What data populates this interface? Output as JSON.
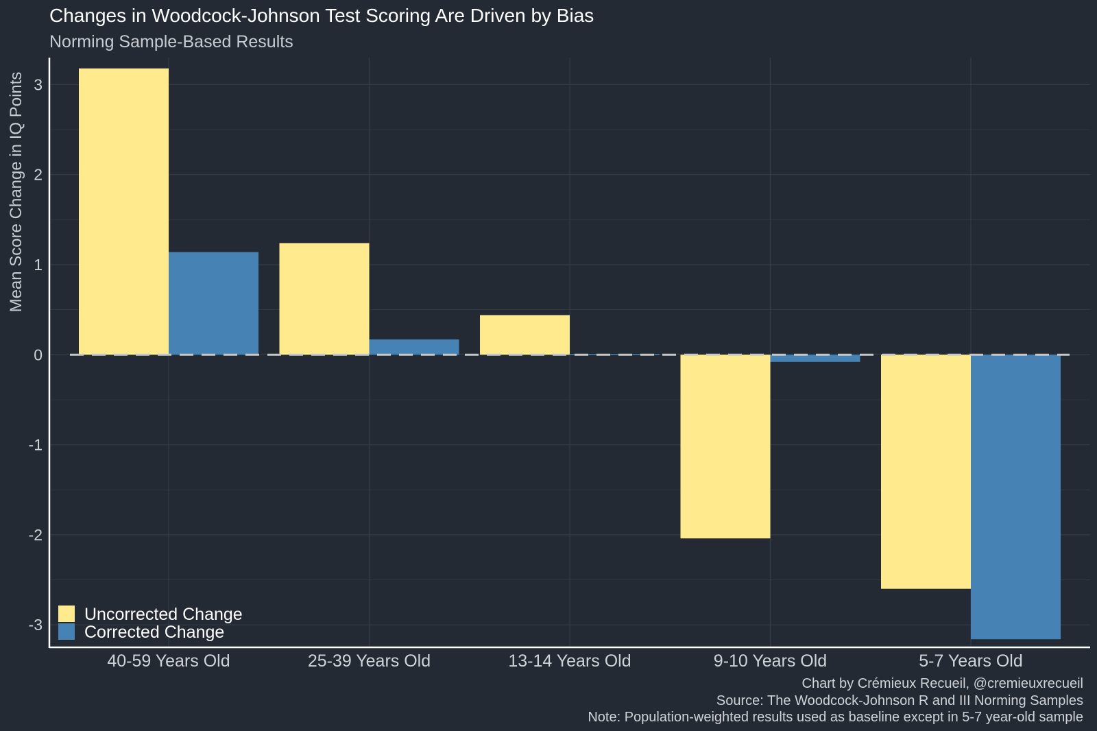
{
  "chart_data": {
    "type": "bar",
    "title": "Changes in Woodcock-Johnson Test Scoring Are Driven by Bias",
    "subtitle": "Norming Sample-Based Results",
    "xlabel": "",
    "ylabel": "Mean Score Change in IQ Points",
    "ylim": [
      -3.25,
      3.3
    ],
    "yticks": [
      -3,
      -2,
      -1,
      0,
      1,
      2,
      3
    ],
    "grid": true,
    "reference_line": {
      "y": 0,
      "style": "dashed"
    },
    "legend_position": "bottom-left",
    "categories": [
      "40-59 Years Old",
      "25-39 Years Old",
      "13-14 Years Old",
      "9-10 Years Old",
      "5-7 Years Old"
    ],
    "series": [
      {
        "name": "Uncorrected Change",
        "color": "#ffeb8e",
        "values": [
          3.18,
          1.24,
          0.44,
          -2.04,
          -2.6
        ]
      },
      {
        "name": "Corrected Change",
        "color": "#4682b4",
        "values": [
          1.14,
          0.17,
          0.01,
          -0.08,
          -3.16
        ]
      }
    ],
    "caption": [
      "Chart by Crémieux Recueil, @cremieuxrecueil",
      "Source: The Woodcock-Johnson R and III Norming Samples",
      "Note: Population-weighted results used as baseline except in 5-7 year-old sample"
    ]
  },
  "colors": {
    "background": "#232a34",
    "grid": "#343c48",
    "axis": "#ffffff",
    "zero_line": "#c8c8c8"
  }
}
